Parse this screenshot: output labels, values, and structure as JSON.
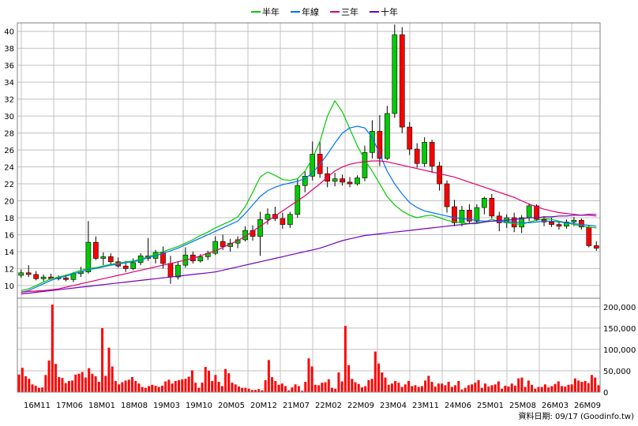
{
  "footer": "資料日期: 09/17 (Goodinfo.tw)",
  "colors": {
    "up": "#00cc00",
    "down": "#ff0000",
    "volume": "#ff0000",
    "half_year": "#00cc00",
    "year": "#0070ff",
    "three_year": "#e0006e",
    "ten_year": "#7000c0",
    "grid": "#c0c0c0",
    "frame": "#808080"
  },
  "chart_data": [
    {
      "type": "candlestick",
      "title": "",
      "period": "monthly",
      "ylim": [
        8.5,
        41
      ],
      "grid": true,
      "legend_position": "top",
      "y_ticks": [
        10,
        12,
        14,
        16,
        18,
        20,
        22,
        24,
        26,
        28,
        30,
        32,
        34,
        36,
        38,
        40
      ],
      "x_tick_labels": [
        "16M11",
        "17M06",
        "18M01",
        "18M08",
        "19M03",
        "19M10",
        "20M05",
        "20M12",
        "21M07",
        "22M02",
        "22M09",
        "23M04",
        "23M11",
        "24M06",
        "25M01",
        "25M08",
        "26M03",
        "26M09"
      ],
      "series": [
        {
          "name": "半年",
          "values": [
            9.4,
            9.6,
            10.0,
            10.4,
            10.8,
            11.0,
            11.2,
            11.5,
            11.8,
            12.0,
            12.1,
            12.3,
            12.5,
            12.6,
            12.8,
            12.9,
            13.1,
            13.4,
            13.7,
            14.0,
            14.3,
            14.6,
            15.0,
            15.4,
            15.9,
            16.3,
            16.8,
            17.2,
            17.6,
            18.1,
            19.3,
            21.0,
            22.8,
            23.4,
            23.0,
            22.5,
            22.4,
            22.6,
            23.5,
            25.0,
            27.0,
            30.0,
            31.8,
            30.5,
            28.5,
            26.5,
            24.8,
            23.5,
            22.0,
            20.5,
            19.5,
            18.8,
            18.3,
            18.0,
            18.2,
            18.3,
            18.0,
            17.7,
            17.5,
            17.4,
            17.3,
            17.3,
            17.5,
            17.8,
            17.6,
            17.4,
            17.3,
            17.2,
            17.5,
            17.7,
            17.9,
            17.8,
            17.6,
            17.4,
            17.2,
            17.0,
            16.9,
            16.8
          ]
        },
        {
          "name": "年線",
          "values": [
            9.2,
            9.4,
            9.8,
            10.2,
            10.6,
            10.9,
            11.1,
            11.4,
            11.6,
            11.9,
            12.0,
            12.2,
            12.4,
            12.5,
            12.7,
            12.8,
            13.0,
            13.3,
            13.5,
            13.8,
            14.1,
            14.4,
            14.8,
            15.2,
            15.6,
            16.0,
            16.4,
            16.8,
            17.2,
            17.6,
            18.5,
            19.5,
            20.5,
            21.2,
            21.6,
            21.9,
            22.1,
            22.3,
            22.6,
            23.3,
            24.3,
            25.5,
            26.8,
            28.0,
            28.6,
            28.8,
            28.6,
            27.5,
            25.5,
            23.5,
            22.0,
            20.8,
            19.8,
            19.2,
            18.8,
            18.6,
            18.4,
            18.2,
            18.0,
            17.9,
            17.8,
            17.7,
            17.6,
            17.6,
            17.6,
            17.5,
            17.5,
            17.4,
            17.4,
            17.5,
            17.6,
            17.6,
            17.5,
            17.4,
            17.3,
            17.2,
            17.1,
            17.0
          ]
        },
        {
          "name": "三年",
          "values": [
            9.2,
            9.3,
            9.35,
            9.4,
            9.5,
            9.6,
            9.8,
            10.0,
            10.2,
            10.4,
            10.6,
            10.8,
            11.0,
            11.2,
            11.4,
            11.6,
            11.8,
            12.0,
            12.2,
            12.4,
            12.6,
            12.8,
            13.0,
            13.2,
            13.5,
            13.8,
            14.1,
            14.5,
            14.9,
            15.3,
            15.8,
            16.4,
            17.0,
            17.6,
            18.2,
            18.8,
            19.4,
            20.0,
            20.6,
            21.3,
            22.0,
            22.8,
            23.5,
            24.0,
            24.3,
            24.5,
            24.6,
            24.7,
            24.7,
            24.6,
            24.4,
            24.2,
            24.0,
            23.8,
            23.6,
            23.4,
            23.2,
            23.0,
            22.8,
            22.5,
            22.2,
            21.9,
            21.6,
            21.3,
            21.0,
            20.7,
            20.4,
            20.0,
            19.6,
            19.3,
            19.0,
            18.8,
            18.6,
            18.5,
            18.4,
            18.3,
            18.3,
            18.2
          ]
        },
        {
          "name": "十年",
          "values": [
            9.0,
            9.1,
            9.2,
            9.3,
            9.4,
            9.5,
            9.6,
            9.7,
            9.8,
            9.9,
            10.0,
            10.1,
            10.2,
            10.3,
            10.4,
            10.5,
            10.6,
            10.7,
            10.8,
            10.9,
            11.0,
            11.1,
            11.2,
            11.3,
            11.4,
            11.5,
            11.6,
            11.8,
            12.0,
            12.2,
            12.4,
            12.6,
            12.8,
            13.0,
            13.2,
            13.4,
            13.6,
            13.8,
            14.0,
            14.2,
            14.4,
            14.7,
            15.0,
            15.3,
            15.5,
            15.7,
            15.9,
            16.0,
            16.1,
            16.2,
            16.3,
            16.4,
            16.5,
            16.6,
            16.7,
            16.8,
            16.9,
            17.0,
            17.1,
            17.2,
            17.3,
            17.4,
            17.5,
            17.6,
            17.7,
            17.7,
            17.8,
            17.9,
            18.0,
            18.0,
            18.1,
            18.1,
            18.2,
            18.2,
            18.3,
            18.3,
            18.4,
            18.4
          ]
        }
      ],
      "candles": [
        {
          "o": 11.2,
          "h": 11.9,
          "l": 10.9,
          "c": 11.5
        },
        {
          "o": 11.5,
          "h": 12.4,
          "l": 11.0,
          "c": 11.3
        },
        {
          "o": 11.3,
          "h": 11.7,
          "l": 10.6,
          "c": 10.8
        },
        {
          "o": 10.8,
          "h": 11.3,
          "l": 10.5,
          "c": 11.0
        },
        {
          "o": 11.0,
          "h": 11.4,
          "l": 10.7,
          "c": 10.8
        },
        {
          "o": 10.8,
          "h": 11.2,
          "l": 10.6,
          "c": 10.9
        },
        {
          "o": 10.9,
          "h": 11.3,
          "l": 10.5,
          "c": 10.7
        },
        {
          "o": 10.7,
          "h": 11.6,
          "l": 10.4,
          "c": 11.4
        },
        {
          "o": 11.4,
          "h": 12.2,
          "l": 11.0,
          "c": 11.6
        },
        {
          "o": 11.6,
          "h": 17.6,
          "l": 11.4,
          "c": 15.1
        },
        {
          "o": 15.1,
          "h": 15.8,
          "l": 13.0,
          "c": 13.2
        },
        {
          "o": 13.2,
          "h": 13.9,
          "l": 12.4,
          "c": 13.4
        },
        {
          "o": 13.4,
          "h": 13.8,
          "l": 12.5,
          "c": 12.8
        },
        {
          "o": 12.8,
          "h": 13.3,
          "l": 12.1,
          "c": 12.3
        },
        {
          "o": 12.3,
          "h": 12.9,
          "l": 11.6,
          "c": 12.0
        },
        {
          "o": 12.0,
          "h": 13.2,
          "l": 11.8,
          "c": 12.7
        },
        {
          "o": 12.7,
          "h": 13.8,
          "l": 12.4,
          "c": 13.5
        },
        {
          "o": 13.5,
          "h": 15.6,
          "l": 12.9,
          "c": 13.2
        },
        {
          "o": 13.2,
          "h": 14.2,
          "l": 12.6,
          "c": 13.9
        },
        {
          "o": 13.9,
          "h": 14.6,
          "l": 12.0,
          "c": 12.6
        },
        {
          "o": 12.6,
          "h": 13.5,
          "l": 10.2,
          "c": 11.0
        },
        {
          "o": 11.0,
          "h": 12.8,
          "l": 10.7,
          "c": 12.4
        },
        {
          "o": 12.4,
          "h": 14.5,
          "l": 12.1,
          "c": 13.6
        },
        {
          "o": 13.6,
          "h": 14.0,
          "l": 12.6,
          "c": 12.9
        },
        {
          "o": 12.9,
          "h": 13.7,
          "l": 12.7,
          "c": 13.4
        },
        {
          "o": 13.4,
          "h": 14.1,
          "l": 13.0,
          "c": 13.8
        },
        {
          "o": 13.8,
          "h": 15.8,
          "l": 13.6,
          "c": 15.2
        },
        {
          "o": 15.2,
          "h": 16.0,
          "l": 14.2,
          "c": 14.6
        },
        {
          "o": 14.6,
          "h": 15.5,
          "l": 14.0,
          "c": 15.0
        },
        {
          "o": 15.0,
          "h": 15.8,
          "l": 14.4,
          "c": 15.4
        },
        {
          "o": 15.4,
          "h": 17.0,
          "l": 15.2,
          "c": 16.5
        },
        {
          "o": 16.5,
          "h": 17.1,
          "l": 15.3,
          "c": 15.8
        },
        {
          "o": 15.8,
          "h": 18.7,
          "l": 13.5,
          "c": 17.8
        },
        {
          "o": 17.8,
          "h": 19.1,
          "l": 17.2,
          "c": 18.4
        },
        {
          "o": 18.4,
          "h": 19.3,
          "l": 17.6,
          "c": 17.9
        },
        {
          "o": 17.9,
          "h": 18.6,
          "l": 16.7,
          "c": 17.2
        },
        {
          "o": 17.2,
          "h": 18.7,
          "l": 16.8,
          "c": 18.4
        },
        {
          "o": 18.4,
          "h": 22.6,
          "l": 18.0,
          "c": 21.8
        },
        {
          "o": 21.8,
          "h": 23.5,
          "l": 21.0,
          "c": 22.9
        },
        {
          "o": 22.9,
          "h": 27.0,
          "l": 22.4,
          "c": 25.5
        },
        {
          "o": 25.5,
          "h": 27.0,
          "l": 22.7,
          "c": 23.2
        },
        {
          "o": 23.2,
          "h": 24.0,
          "l": 21.6,
          "c": 22.3
        },
        {
          "o": 22.3,
          "h": 23.3,
          "l": 21.7,
          "c": 22.6
        },
        {
          "o": 22.6,
          "h": 23.1,
          "l": 21.8,
          "c": 22.2
        },
        {
          "o": 22.2,
          "h": 22.8,
          "l": 21.6,
          "c": 22.0
        },
        {
          "o": 22.0,
          "h": 23.0,
          "l": 21.8,
          "c": 22.7
        },
        {
          "o": 22.7,
          "h": 26.5,
          "l": 22.3,
          "c": 25.7
        },
        {
          "o": 25.7,
          "h": 29.5,
          "l": 25.0,
          "c": 28.2
        },
        {
          "o": 28.2,
          "h": 30.1,
          "l": 24.1,
          "c": 25.0
        },
        {
          "o": 25.0,
          "h": 31.2,
          "l": 24.8,
          "c": 30.3
        },
        {
          "o": 30.3,
          "h": 40.8,
          "l": 29.8,
          "c": 39.6
        },
        {
          "o": 39.6,
          "h": 40.5,
          "l": 28.0,
          "c": 28.7
        },
        {
          "o": 28.7,
          "h": 29.3,
          "l": 25.4,
          "c": 26.1
        },
        {
          "o": 26.1,
          "h": 26.8,
          "l": 23.9,
          "c": 24.4
        },
        {
          "o": 24.4,
          "h": 27.5,
          "l": 24.0,
          "c": 26.9
        },
        {
          "o": 26.9,
          "h": 27.2,
          "l": 23.3,
          "c": 24.1
        },
        {
          "o": 24.1,
          "h": 24.6,
          "l": 21.2,
          "c": 22.0
        },
        {
          "o": 22.0,
          "h": 22.4,
          "l": 18.6,
          "c": 19.3
        },
        {
          "o": 19.3,
          "h": 20.1,
          "l": 17.0,
          "c": 17.4
        },
        {
          "o": 17.4,
          "h": 19.4,
          "l": 17.0,
          "c": 18.9
        },
        {
          "o": 18.9,
          "h": 19.6,
          "l": 17.3,
          "c": 17.6
        },
        {
          "o": 17.6,
          "h": 19.6,
          "l": 17.4,
          "c": 19.2
        },
        {
          "o": 19.2,
          "h": 20.5,
          "l": 18.4,
          "c": 20.3
        },
        {
          "o": 20.3,
          "h": 20.8,
          "l": 17.9,
          "c": 18.2
        },
        {
          "o": 18.2,
          "h": 18.7,
          "l": 16.4,
          "c": 17.4
        },
        {
          "o": 17.4,
          "h": 18.4,
          "l": 16.8,
          "c": 18.0
        },
        {
          "o": 18.0,
          "h": 18.6,
          "l": 16.3,
          "c": 16.9
        },
        {
          "o": 16.9,
          "h": 18.3,
          "l": 16.2,
          "c": 18.0
        },
        {
          "o": 18.0,
          "h": 19.7,
          "l": 17.6,
          "c": 19.4
        },
        {
          "o": 19.4,
          "h": 19.6,
          "l": 17.6,
          "c": 17.8
        },
        {
          "o": 17.8,
          "h": 18.2,
          "l": 17.0,
          "c": 17.5
        },
        {
          "o": 17.5,
          "h": 18.0,
          "l": 16.9,
          "c": 17.2
        },
        {
          "o": 17.2,
          "h": 17.6,
          "l": 16.6,
          "c": 17.0
        },
        {
          "o": 17.0,
          "h": 17.8,
          "l": 16.7,
          "c": 17.5
        },
        {
          "o": 17.5,
          "h": 18.1,
          "l": 17.0,
          "c": 17.7
        },
        {
          "o": 17.7,
          "h": 17.9,
          "l": 16.6,
          "c": 16.9
        },
        {
          "o": 16.9,
          "h": 17.1,
          "l": 14.5,
          "c": 14.7
        },
        {
          "o": 14.7,
          "h": 15.2,
          "l": 14.1,
          "c": 14.4
        }
      ]
    },
    {
      "type": "bar",
      "title": "",
      "ylabel": "",
      "ylim": [
        0,
        220000
      ],
      "y_ticks": [
        0,
        50000,
        100000,
        150000,
        200000
      ],
      "y_tick_labels": [
        "0",
        "50,000",
        "100,000",
        "150,000",
        "200,000"
      ],
      "grid": true,
      "values": [
        41000,
        57000,
        37000,
        31000,
        18000,
        15000,
        10000,
        11000,
        40000,
        74000,
        205000,
        66000,
        35000,
        33000,
        21000,
        26000,
        27000,
        41000,
        43000,
        47000,
        34000,
        56000,
        43000,
        37000,
        24000,
        150000,
        38000,
        104000,
        60000,
        26000,
        18000,
        23000,
        27000,
        29000,
        35000,
        26000,
        20000,
        12000,
        10000,
        14000,
        17000,
        15000,
        12000,
        15000,
        25000,
        29000,
        20000,
        26000,
        28000,
        30000,
        31000,
        36000,
        51000,
        22000,
        10000,
        22000,
        59000,
        50000,
        26000,
        40000,
        24000,
        14000,
        54000,
        44000,
        22000,
        18000,
        13000,
        10000,
        10000,
        8000,
        5000,
        5000,
        7000,
        4000,
        28000,
        75000,
        35000,
        26000,
        17000,
        20000,
        14000,
        4000,
        11000,
        18000,
        14000,
        3000,
        24000,
        79000,
        60000,
        17000,
        16000,
        22000,
        23000,
        30000,
        10000,
        8000,
        46000,
        25000,
        155000,
        63000,
        31000,
        23000,
        19000,
        11000,
        14000,
        28000,
        31000,
        95000,
        67000,
        46000,
        34000,
        17000,
        20000,
        26000,
        22000,
        12000,
        18000,
        26000,
        14000,
        16000,
        12000,
        14000,
        27000,
        38000,
        24000,
        13000,
        20000,
        20000,
        16000,
        24000,
        12000,
        16000,
        26000,
        6000,
        10000,
        16000,
        18000,
        22000,
        28000,
        10000,
        20000,
        13000,
        16000,
        18000,
        25000,
        8000,
        15000,
        13000,
        20000,
        15000,
        32000,
        34000,
        12000,
        27000,
        17000,
        8000,
        12000,
        12000,
        18000,
        11000,
        14000,
        19000,
        25000,
        14000,
        13000,
        17000,
        18000,
        32000,
        27000,
        24000,
        26000,
        21000,
        40000,
        34000,
        16000
      ]
    }
  ]
}
